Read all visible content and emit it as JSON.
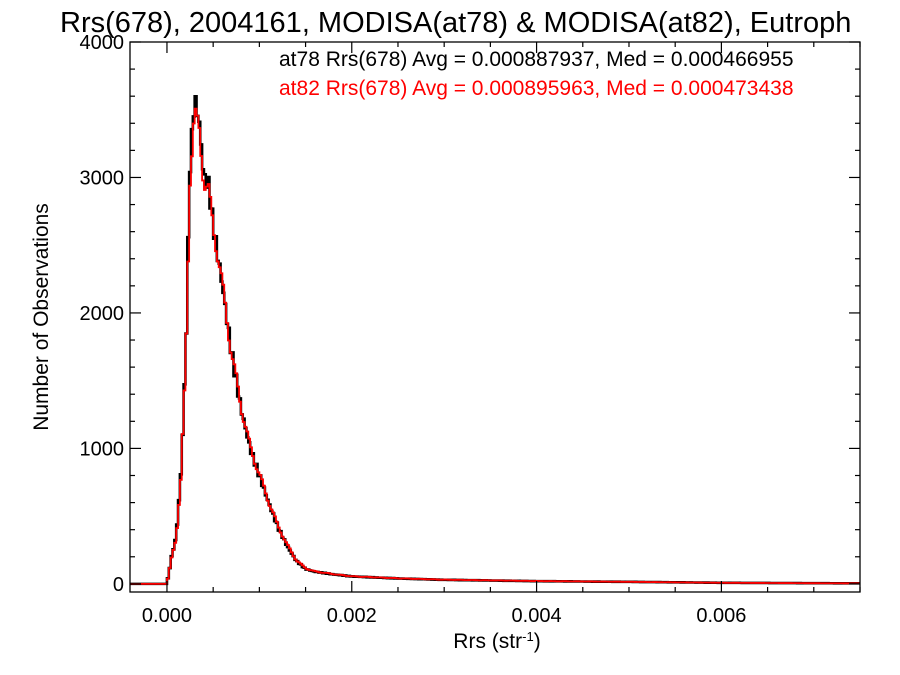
{
  "chart_data": {
    "type": "histogram-step",
    "title": "Rrs(678), 2004161, MODISA(at78) & MODISA(at82), Eutroph",
    "xlabel_main": "Rrs (str",
    "xlabel_sup": "-1",
    "xlabel_close": ")",
    "ylabel": "Number of Observations",
    "xlim": [
      -0.0004,
      0.0075
    ],
    "ylim": [
      -60,
      4000
    ],
    "x_ticks": [
      0.0,
      0.002,
      0.004,
      0.006
    ],
    "x_tick_labels": [
      "0.000",
      "0.002",
      "0.004",
      "0.006"
    ],
    "y_ticks": [
      0,
      1000,
      2000,
      3000,
      4000
    ],
    "y_tick_labels": [
      "0",
      "1000",
      "2000",
      "3000",
      "4000"
    ],
    "x_minor_step": 0.0005,
    "y_minor_step": 200,
    "legend_position": "top-right",
    "legend": [
      {
        "text": "at78 Rrs(678) Avg = 0.000887937, Med = 0.000466955",
        "color": "#000000"
      },
      {
        "text": "at82 Rrs(678) Avg = 0.000895963, Med = 0.000473438",
        "color": "#ff0000"
      }
    ],
    "series": [
      {
        "name": "at78",
        "color": "#000000",
        "profile": [
          [
            -0.0004,
            0
          ],
          [
            0.0,
            0
          ],
          [
            5e-05,
            200
          ],
          [
            0.0001,
            350
          ],
          [
            0.00015,
            800
          ],
          [
            0.0002,
            1600
          ],
          [
            0.00025,
            3100
          ],
          [
            0.0003,
            3600
          ],
          [
            0.00035,
            3400
          ],
          [
            0.0004,
            3000
          ],
          [
            0.00045,
            2950
          ],
          [
            0.0005,
            2650
          ],
          [
            0.0006,
            2200
          ],
          [
            0.0007,
            1700
          ],
          [
            0.0008,
            1300
          ],
          [
            0.0009,
            1000
          ],
          [
            0.001,
            800
          ],
          [
            0.0011,
            600
          ],
          [
            0.0012,
            420
          ],
          [
            0.0013,
            280
          ],
          [
            0.0014,
            170
          ],
          [
            0.0015,
            110
          ],
          [
            0.0016,
            90
          ],
          [
            0.0018,
            70
          ],
          [
            0.002,
            55
          ],
          [
            0.0025,
            40
          ],
          [
            0.003,
            30
          ],
          [
            0.004,
            20
          ],
          [
            0.005,
            15
          ],
          [
            0.006,
            8
          ],
          [
            0.007,
            5
          ],
          [
            0.0075,
            4
          ]
        ]
      },
      {
        "name": "at82",
        "color": "#ff0000",
        "profile": [
          [
            -0.0004,
            0
          ],
          [
            0.0,
            0
          ],
          [
            5e-05,
            190
          ],
          [
            0.0001,
            340
          ],
          [
            0.00015,
            760
          ],
          [
            0.0002,
            1550
          ],
          [
            0.00025,
            3000
          ],
          [
            0.0003,
            3480
          ],
          [
            0.00035,
            3350
          ],
          [
            0.0004,
            2960
          ],
          [
            0.00045,
            2900
          ],
          [
            0.0005,
            2650
          ],
          [
            0.0006,
            2200
          ],
          [
            0.0007,
            1700
          ],
          [
            0.0008,
            1320
          ],
          [
            0.0009,
            1010
          ],
          [
            0.001,
            810
          ],
          [
            0.0011,
            610
          ],
          [
            0.0012,
            430
          ],
          [
            0.0013,
            290
          ],
          [
            0.0014,
            175
          ],
          [
            0.0015,
            115
          ],
          [
            0.0016,
            92
          ],
          [
            0.0018,
            72
          ],
          [
            0.002,
            56
          ],
          [
            0.0025,
            41
          ],
          [
            0.003,
            31
          ],
          [
            0.004,
            21
          ],
          [
            0.005,
            15
          ],
          [
            0.006,
            8
          ],
          [
            0.007,
            5
          ],
          [
            0.0075,
            4
          ]
        ]
      }
    ],
    "bin_width": 2e-05
  }
}
